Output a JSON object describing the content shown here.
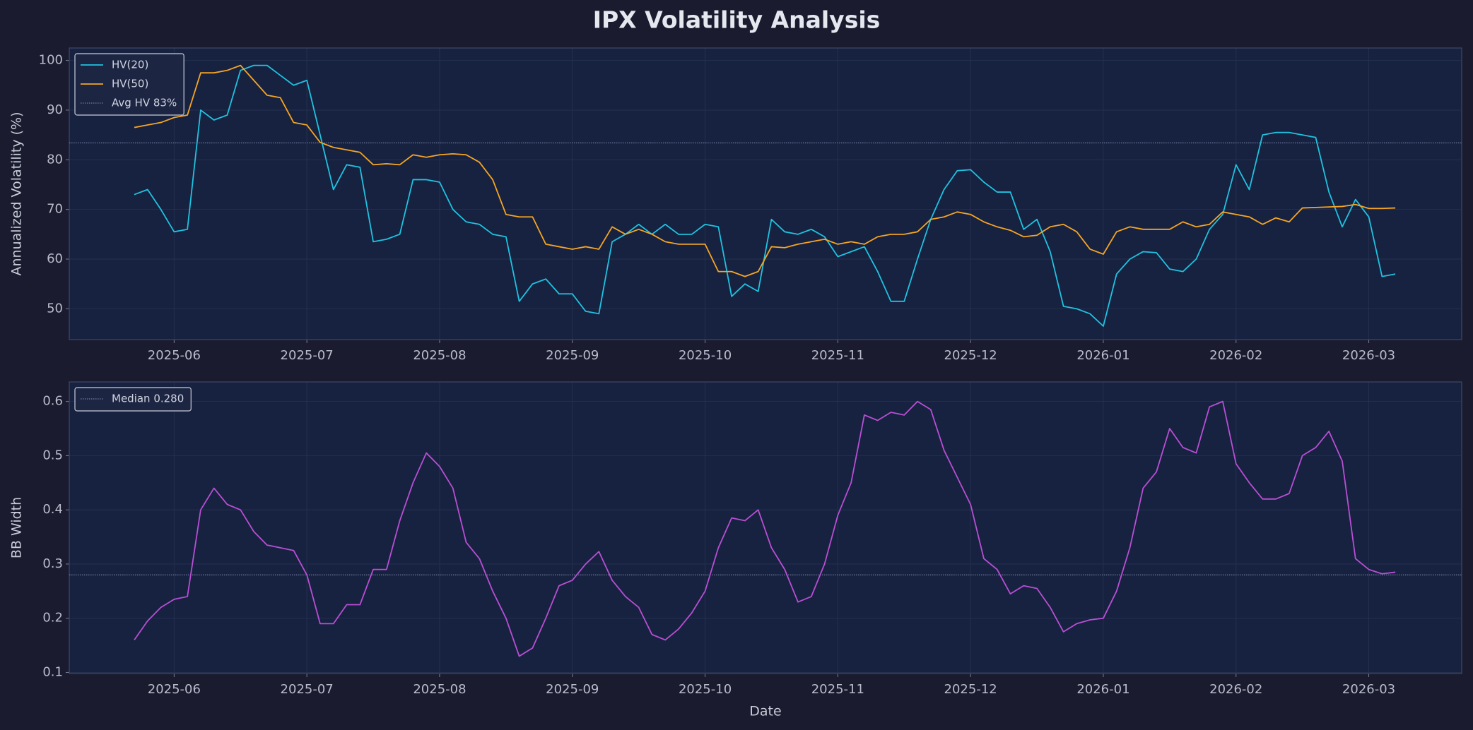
{
  "title": "IPX Volatility Analysis",
  "chart_data": [
    {
      "type": "line",
      "ylabel": "Annualized Volatility (%)",
      "x": [
        5.7,
        5.8,
        5.9,
        6,
        6.1,
        6.2,
        6.3,
        6.4,
        6.5,
        6.6,
        6.7,
        6.8,
        6.9,
        7,
        7.1,
        7.2,
        7.3,
        7.4,
        7.5,
        7.6,
        7.7,
        7.8,
        7.9,
        8,
        8.1,
        8.2,
        8.3,
        8.4,
        8.5,
        8.6,
        8.7,
        8.8,
        8.9,
        9,
        9.1,
        9.2,
        9.3,
        9.4,
        9.5,
        9.6,
        9.7,
        9.8,
        9.9,
        10,
        10.1,
        10.2,
        10.3,
        10.4,
        10.5,
        10.6,
        10.7,
        10.8,
        10.9,
        11,
        11.1,
        11.2,
        11.3,
        11.4,
        11.5,
        11.6,
        11.7,
        11.8,
        11.9,
        12,
        12.1,
        12.2,
        12.3,
        12.4,
        12.5,
        12.6,
        12.7,
        12.8,
        12.9,
        13,
        13.1,
        13.2,
        13.3,
        13.4,
        13.5,
        13.6,
        13.7,
        13.8,
        13.9,
        14,
        14.1,
        14.2,
        14.3,
        14.4,
        14.5,
        14.6,
        14.7,
        14.8,
        14.9,
        15,
        15.1,
        15.2
      ],
      "xlim": [
        5.21,
        15.7
      ],
      "xticks": [
        {
          "value": 6,
          "label": "2025-06"
        },
        {
          "value": 7,
          "label": "2025-07"
        },
        {
          "value": 8,
          "label": "2025-08"
        },
        {
          "value": 9,
          "label": "2025-09"
        },
        {
          "value": 10,
          "label": "2025-10"
        },
        {
          "value": 11,
          "label": "2025-11"
        },
        {
          "value": 12,
          "label": "2025-12"
        },
        {
          "value": 13,
          "label": "2026-01"
        },
        {
          "value": 14,
          "label": "2026-02"
        },
        {
          "value": 15,
          "label": "2026-03"
        }
      ],
      "ylim": [
        43.8,
        102.5
      ],
      "yticks": [
        50,
        60,
        70,
        80,
        90,
        100
      ],
      "grid": true,
      "legend": "upper left",
      "series": [
        {
          "name": "HV(20)",
          "color": "#1fc3e0",
          "values": [
            73,
            74,
            70,
            65.5,
            66,
            90,
            88,
            89,
            98,
            99,
            99,
            97,
            95,
            96,
            85,
            74,
            79,
            78.5,
            63.5,
            64,
            65,
            76,
            76,
            75.5,
            70,
            67.5,
            67,
            65,
            64.5,
            51.5,
            55,
            56,
            53,
            53,
            49.5,
            49,
            63.5,
            65,
            67,
            65,
            67,
            65,
            65,
            67,
            66.5,
            52.5,
            55,
            53.5,
            68,
            65.5,
            65,
            66,
            64.5,
            60.5,
            61.5,
            62.5,
            57.5,
            51.5,
            51.5,
            60,
            68,
            74,
            77.8,
            78,
            75.5,
            73.5,
            73.5,
            66,
            68,
            61.5,
            50.5,
            50,
            49,
            46.5,
            57,
            60,
            61.5,
            61.3,
            58,
            57.5,
            60,
            66,
            69,
            79,
            74,
            85,
            85.5,
            85.5,
            85,
            84.5,
            73.5,
            66.5,
            72,
            68.5,
            56.5,
            57
          ]
        },
        {
          "name": "HV(50)",
          "color": "#f5a623",
          "values": [
            86.5,
            87,
            87.5,
            88.5,
            89,
            97.5,
            97.5,
            98,
            99,
            96,
            93,
            92.5,
            87.5,
            87,
            83.5,
            82.5,
            82,
            81.5,
            79,
            79.2,
            79,
            81,
            80.5,
            81,
            81.2,
            81,
            79.5,
            76,
            69,
            68.5,
            68.5,
            63,
            62.5,
            62,
            62.5,
            62,
            66.5,
            65,
            66,
            65,
            63.5,
            63,
            63,
            63,
            57.5,
            57.5,
            56.5,
            57.5,
            62.5,
            62.3,
            63,
            63.5,
            64,
            63,
            63.5,
            63,
            64.5,
            65,
            65,
            65.5,
            68,
            68.5,
            69.5,
            69,
            67.5,
            66.5,
            65.8,
            64.5,
            64.8,
            66.5,
            67,
            65.5,
            62,
            61,
            65.5,
            66.5,
            66,
            66,
            66,
            67.5,
            66.5,
            67,
            69.5,
            69,
            68.5,
            67,
            68.3,
            67.5,
            70.3,
            70.4,
            70.5,
            70.6,
            71,
            70.2,
            70.2,
            70.3
          ]
        }
      ],
      "reference_lines": [
        {
          "label": "Avg HV 83%",
          "value": 83.4,
          "color": "#8a93b8"
        }
      ]
    },
    {
      "type": "line",
      "ylabel": "BB Width",
      "xlabel": "Date",
      "x": [
        5.7,
        5.8,
        5.9,
        6,
        6.1,
        6.2,
        6.3,
        6.4,
        6.5,
        6.6,
        6.7,
        6.8,
        6.9,
        7,
        7.1,
        7.2,
        7.3,
        7.4,
        7.5,
        7.6,
        7.7,
        7.8,
        7.9,
        8,
        8.1,
        8.2,
        8.3,
        8.4,
        8.5,
        8.6,
        8.7,
        8.8,
        8.9,
        9,
        9.1,
        9.2,
        9.3,
        9.4,
        9.5,
        9.6,
        9.7,
        9.8,
        9.9,
        10,
        10.1,
        10.2,
        10.3,
        10.4,
        10.5,
        10.6,
        10.7,
        10.8,
        10.9,
        11,
        11.1,
        11.2,
        11.3,
        11.4,
        11.5,
        11.6,
        11.7,
        11.8,
        11.9,
        12,
        12.1,
        12.2,
        12.3,
        12.4,
        12.5,
        12.6,
        12.7,
        12.8,
        12.9,
        13,
        13.1,
        13.2,
        13.3,
        13.4,
        13.5,
        13.6,
        13.7,
        13.8,
        13.9,
        14,
        14.1,
        14.2,
        14.3,
        14.4,
        14.5,
        14.6,
        14.7,
        14.8,
        14.9,
        15,
        15.1,
        15.2
      ],
      "xlim": [
        5.21,
        15.7
      ],
      "xticks": [
        {
          "value": 6,
          "label": "2025-06"
        },
        {
          "value": 7,
          "label": "2025-07"
        },
        {
          "value": 8,
          "label": "2025-08"
        },
        {
          "value": 9,
          "label": "2025-09"
        },
        {
          "value": 10,
          "label": "2025-10"
        },
        {
          "value": 11,
          "label": "2025-11"
        },
        {
          "value": 12,
          "label": "2025-12"
        },
        {
          "value": 13,
          "label": "2026-01"
        },
        {
          "value": 14,
          "label": "2026-02"
        },
        {
          "value": 15,
          "label": "2026-03"
        }
      ],
      "ylim": [
        0.098,
        0.636
      ],
      "yticks": [
        0.1,
        0.2,
        0.3,
        0.4,
        0.5,
        0.6
      ],
      "grid": true,
      "legend": "upper left",
      "series": [
        {
          "color": "#b94fd4",
          "values": [
            0.16,
            0.195,
            0.22,
            0.235,
            0.24,
            0.4,
            0.44,
            0.41,
            0.4,
            0.36,
            0.335,
            0.33,
            0.325,
            0.28,
            0.19,
            0.19,
            0.225,
            0.225,
            0.29,
            0.29,
            0.38,
            0.45,
            0.505,
            0.48,
            0.44,
            0.34,
            0.31,
            0.25,
            0.2,
            0.13,
            0.145,
            0.2,
            0.26,
            0.27,
            0.3,
            0.323,
            0.27,
            0.24,
            0.22,
            0.17,
            0.16,
            0.18,
            0.21,
            0.25,
            0.33,
            0.385,
            0.38,
            0.4,
            0.33,
            0.29,
            0.23,
            0.24,
            0.3,
            0.39,
            0.45,
            0.575,
            0.565,
            0.58,
            0.575,
            0.6,
            0.585,
            0.51,
            0.46,
            0.41,
            0.31,
            0.29,
            0.245,
            0.26,
            0.255,
            0.22,
            0.175,
            0.19,
            0.197,
            0.2,
            0.25,
            0.33,
            0.44,
            0.47,
            0.55,
            0.515,
            0.505,
            0.59,
            0.6,
            0.485,
            0.45,
            0.42,
            0.42,
            0.43,
            0.5,
            0.515,
            0.545,
            0.49,
            0.31,
            0.29,
            0.282,
            0.285
          ]
        }
      ],
      "reference_lines": [
        {
          "label": "Median 0.280",
          "value": 0.28,
          "color": "#8a93b8"
        }
      ]
    }
  ]
}
